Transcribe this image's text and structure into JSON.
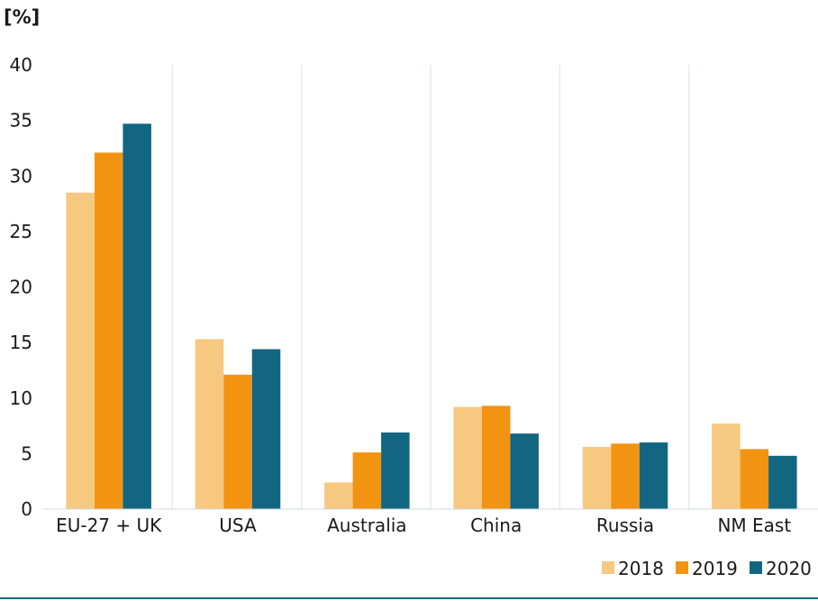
{
  "chart_data": {
    "type": "bar",
    "ylabel": "[%]",
    "ylim": [
      0,
      40
    ],
    "yticks": [
      0,
      5,
      10,
      15,
      20,
      25,
      30,
      35,
      40
    ],
    "categories": [
      "EU-27 + UK",
      "USA",
      "Australia",
      "China",
      "Russia",
      "NM East"
    ],
    "series": [
      {
        "name": "2018",
        "color": "#f7c880",
        "values": [
          28.5,
          15.3,
          2.4,
          9.2,
          5.6,
          7.7
        ]
      },
      {
        "name": "2019",
        "color": "#f29412",
        "values": [
          32.1,
          12.1,
          5.1,
          9.3,
          5.9,
          5.4
        ]
      },
      {
        "name": "2020",
        "color": "#136682",
        "values": [
          34.7,
          14.4,
          6.9,
          6.8,
          6.0,
          4.8
        ]
      }
    ],
    "grid": "vertical separators between categories",
    "legend_position": "bottom-right"
  }
}
